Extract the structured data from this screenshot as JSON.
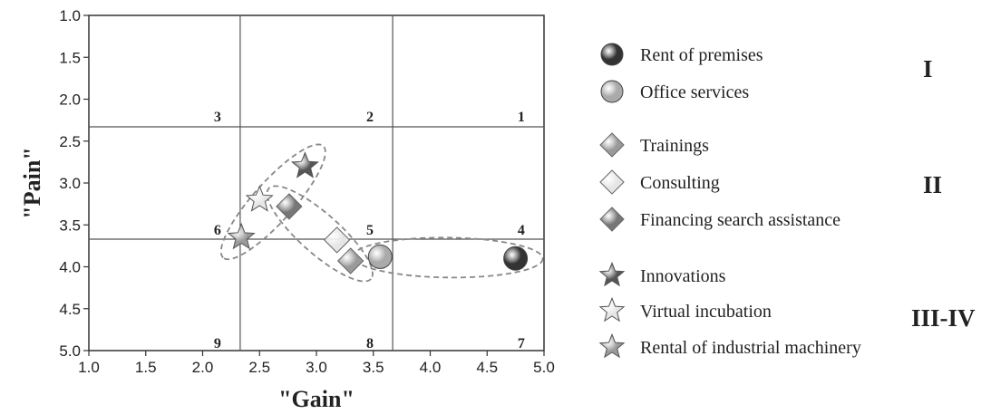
{
  "chart_data": {
    "type": "scatter",
    "xlabel": "\"Gain\"",
    "ylabel": "\"Pain\"",
    "xlim": [
      1.0,
      5.0
    ],
    "ylim": [
      1.0,
      5.0
    ],
    "y_inverted": true,
    "x_ticks": [
      "1.0",
      "1.5",
      "2.0",
      "2.5",
      "3.0",
      "3.5",
      "4.0",
      "4.5",
      "5.0"
    ],
    "y_ticks": [
      "1.0",
      "1.5",
      "2.0",
      "2.5",
      "3.0",
      "3.5",
      "4.0",
      "4.5",
      "5.0"
    ],
    "divider_x": [
      2.33,
      3.67
    ],
    "divider_y": [
      2.33,
      3.67
    ],
    "zones": [
      {
        "label": "1",
        "x": 4.8,
        "y": 2.2
      },
      {
        "label": "2",
        "x": 3.47,
        "y": 2.2
      },
      {
        "label": "3",
        "x": 2.13,
        "y": 2.2
      },
      {
        "label": "4",
        "x": 4.8,
        "y": 3.55
      },
      {
        "label": "5",
        "x": 3.47,
        "y": 3.55
      },
      {
        "label": "6",
        "x": 2.13,
        "y": 3.55
      },
      {
        "label": "7",
        "x": 4.8,
        "y": 4.9
      },
      {
        "label": "8",
        "x": 3.47,
        "y": 4.9
      },
      {
        "label": "9",
        "x": 2.13,
        "y": 4.9
      }
    ],
    "series": [
      {
        "name": "Rent of premises",
        "marker": "sphere",
        "color": "#333333",
        "x": 4.75,
        "y": 3.9
      },
      {
        "name": "Office services",
        "marker": "sphere",
        "color": "#aaaaaa",
        "x": 3.56,
        "y": 3.88
      },
      {
        "name": "Trainings",
        "marker": "diamond",
        "color": "#9a9a9a",
        "x": 3.3,
        "y": 3.93
      },
      {
        "name": "Consulting",
        "marker": "diamond",
        "color": "#e6e6e6",
        "x": 3.18,
        "y": 3.68
      },
      {
        "name": "Financing search assistance",
        "marker": "diamond",
        "color": "#777777",
        "x": 2.76,
        "y": 3.28
      },
      {
        "name": "Innovations",
        "marker": "star",
        "color": "#555555",
        "x": 2.9,
        "y": 2.8
      },
      {
        "name": "Virtual incubation",
        "marker": "star",
        "color": "#e6e6e6",
        "x": 2.5,
        "y": 3.2
      },
      {
        "name": "Rental of industrial machinery",
        "marker": "star",
        "color": "#9a9a9a",
        "x": 2.34,
        "y": 3.65
      }
    ],
    "groups": [
      {
        "label": "I",
        "members": [
          "Rent of premises",
          "Office services"
        ]
      },
      {
        "label": "II",
        "members": [
          "Trainings",
          "Consulting",
          "Financing search assistance"
        ]
      },
      {
        "label": "III-IV",
        "members": [
          "Innovations",
          "Virtual incubation",
          "Rental of industrial machinery"
        ]
      }
    ],
    "ellipses": [
      {
        "members": [
          "Innovations",
          "Virtual incubation",
          "Rental of industrial machinery"
        ]
      },
      {
        "members": [
          "Financing search assistance",
          "Consulting",
          "Trainings"
        ]
      },
      {
        "members": [
          "Office services",
          "Rent of premises"
        ]
      }
    ],
    "grid": false,
    "legend_position": "right"
  }
}
